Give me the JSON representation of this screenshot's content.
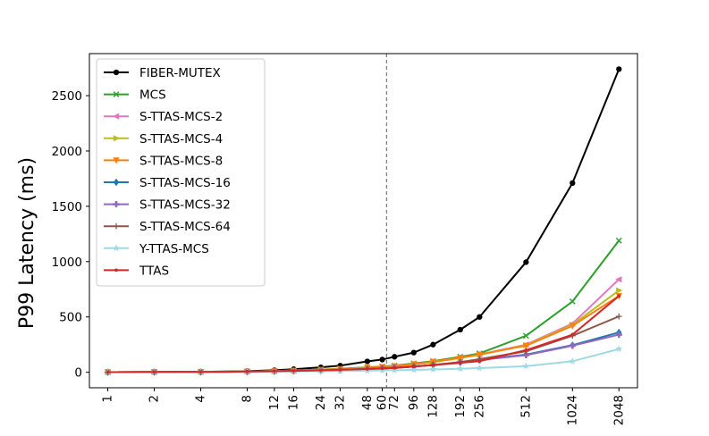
{
  "chart_data": {
    "type": "line",
    "title": "",
    "xlabel": "",
    "ylabel": "P99 Latency (ms)",
    "x_scale": "log2",
    "x": [
      1,
      2,
      4,
      8,
      12,
      16,
      24,
      32,
      48,
      60,
      72,
      96,
      128,
      192,
      256,
      512,
      1024,
      2048
    ],
    "x_tick_labels": [
      "1",
      "2",
      "4",
      "8",
      "12",
      "16",
      "24",
      "32",
      "48",
      "60",
      "72",
      "96",
      "128",
      "192",
      "256",
      "512",
      "1024",
      "2048"
    ],
    "xlim": [
      0.76,
      2700
    ],
    "ylim": [
      -140,
      2880
    ],
    "y_ticks": [
      0,
      500,
      1000,
      1500,
      2000,
      2500
    ],
    "vline": {
      "x": 64,
      "style": "dashed",
      "color": "#808080"
    },
    "legend_position": "upper-left",
    "grid": false,
    "series": [
      {
        "name": "FIBER-MUTEX",
        "color": "#000000",
        "marker": "circle",
        "values": [
          1,
          2,
          4,
          10,
          18,
          28,
          45,
          60,
          98,
          115,
          140,
          178,
          250,
          385,
          500,
          995,
          1710,
          2740
        ]
      },
      {
        "name": "MCS",
        "color": "#2ca02c",
        "marker": "x",
        "values": [
          1,
          2,
          3,
          8,
          12,
          17,
          25,
          32,
          45,
          52,
          60,
          80,
          100,
          140,
          170,
          330,
          640,
          1190
        ]
      },
      {
        "name": "S-TTAS-MCS-2",
        "color": "#e377c2",
        "marker": "triangle-left",
        "values": [
          1,
          2,
          3,
          7,
          11,
          15,
          22,
          29,
          40,
          47,
          55,
          72,
          92,
          130,
          160,
          250,
          440,
          840
        ]
      },
      {
        "name": "S-TTAS-MCS-4",
        "color": "#bcbd22",
        "marker": "triangle-right",
        "values": [
          1,
          2,
          3,
          7,
          11,
          15,
          22,
          29,
          40,
          47,
          55,
          72,
          92,
          128,
          158,
          245,
          430,
          740
        ]
      },
      {
        "name": "S-TTAS-MCS-8",
        "color": "#ff7f0e",
        "marker": "triangle-down",
        "values": [
          1,
          2,
          3,
          7,
          11,
          15,
          23,
          30,
          42,
          48,
          56,
          74,
          96,
          132,
          162,
          240,
          420,
          690
        ]
      },
      {
        "name": "S-TTAS-MCS-16",
        "color": "#1f77b4",
        "marker": "diamond",
        "values": [
          1,
          2,
          3,
          6,
          9,
          12,
          17,
          22,
          30,
          35,
          40,
          52,
          66,
          90,
          112,
          160,
          245,
          360
        ]
      },
      {
        "name": "S-TTAS-MCS-32",
        "color": "#9467bd",
        "marker": "plus-filled",
        "values": [
          1,
          2,
          3,
          6,
          9,
          12,
          17,
          22,
          30,
          35,
          40,
          52,
          66,
          90,
          110,
          155,
          240,
          340
        ]
      },
      {
        "name": "S-TTAS-MCS-64",
        "color": "#8c564b",
        "marker": "plus",
        "values": [
          1,
          2,
          3,
          6,
          9,
          12,
          17,
          22,
          30,
          35,
          40,
          52,
          66,
          92,
          118,
          190,
          330,
          505
        ]
      },
      {
        "name": "Y-TTAS-MCS",
        "color": "#9edae5",
        "marker": "star",
        "values": [
          1,
          1,
          2,
          4,
          6,
          7,
          9,
          11,
          14,
          16,
          18,
          22,
          26,
          32,
          38,
          55,
          100,
          210
        ]
      },
      {
        "name": "TTAS",
        "color": "#d62728",
        "marker": "dot",
        "values": [
          1,
          2,
          3,
          6,
          9,
          12,
          17,
          22,
          30,
          35,
          40,
          52,
          65,
          85,
          100,
          200,
          340,
          690
        ]
      }
    ]
  }
}
